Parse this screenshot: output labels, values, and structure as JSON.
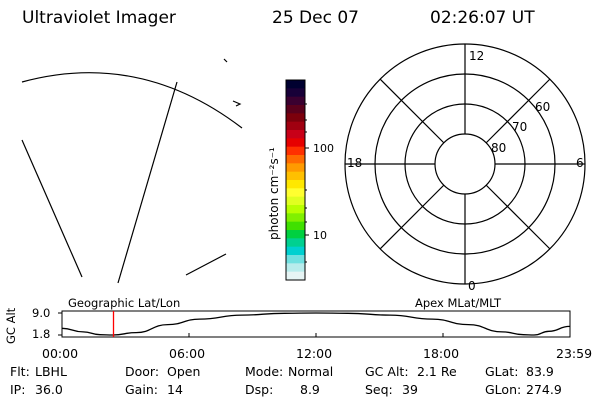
{
  "header": {
    "instrument": "Ultraviolet Imager",
    "date": "25 Dec 07",
    "time": "02:26:07 UT"
  },
  "colorbar": {
    "units": "photon cm⁻²s⁻¹",
    "ticks": [
      "100",
      "10"
    ],
    "colors": [
      "#000030",
      "#180038",
      "#3a0030",
      "#5a001c",
      "#7c000c",
      "#a00010",
      "#c80018",
      "#e60000",
      "#ff3000",
      "#ff6a00",
      "#ff9a00",
      "#ffc000",
      "#ffe800",
      "#ffff30",
      "#e0ff20",
      "#b8ff00",
      "#80f000",
      "#40e000",
      "#00d040",
      "#00d090",
      "#00d0d0",
      "#70e0e0",
      "#b8ecec",
      "#e6f4f4"
    ]
  },
  "polar": {
    "mlt_labels": {
      "top": "12",
      "bottom": "0",
      "left": "18",
      "right": "6"
    },
    "lat_labels": [
      "60",
      "70",
      "80"
    ],
    "lat_values": [
      60,
      70,
      80
    ]
  },
  "timeline": {
    "left_label": "Geographic Lat/Lon",
    "right_label": "Apex MLat/MLT",
    "axis_name": "GC Alt",
    "ymax_label": "9.0",
    "ymin_label": "1.8",
    "ylim": [
      1.8,
      9.0
    ],
    "x_ticks": [
      "00:00",
      "06:00",
      "12:00",
      "18:00",
      "23:59"
    ],
    "current_time_hours": 2.435,
    "marker_color": "#ff0000",
    "curve": [
      {
        "t": 0,
        "alt": 4.0
      },
      {
        "t": 1.0,
        "alt": 2.8
      },
      {
        "t": 1.8,
        "alt": 1.9
      },
      {
        "t": 2.4,
        "alt": 1.8
      },
      {
        "t": 3.5,
        "alt": 2.6
      },
      {
        "t": 5.0,
        "alt": 5.2
      },
      {
        "t": 6.5,
        "alt": 7.0
      },
      {
        "t": 8.5,
        "alt": 8.3
      },
      {
        "t": 10.5,
        "alt": 8.9
      },
      {
        "t": 12.0,
        "alt": 9.0
      },
      {
        "t": 13.5,
        "alt": 8.9
      },
      {
        "t": 15.5,
        "alt": 8.3
      },
      {
        "t": 17.5,
        "alt": 7.0
      },
      {
        "t": 19.2,
        "alt": 5.2
      },
      {
        "t": 20.8,
        "alt": 2.8
      },
      {
        "t": 21.8,
        "alt": 1.9
      },
      {
        "t": 22.3,
        "alt": 1.8
      },
      {
        "t": 23.0,
        "alt": 3.0
      },
      {
        "t": 23.98,
        "alt": 4.6
      }
    ]
  },
  "status": {
    "flt_label": "Flt:",
    "flt_value": "LBHL",
    "door_label": "Door:",
    "door_value": "Open",
    "mode_label": "Mode:",
    "mode_value": "Normal",
    "gcalt_label": "GC Alt:",
    "gcalt_value": "2.1 Re",
    "glat_label": "GLat:",
    "glat_value": "83.9",
    "ip_label": "IP:",
    "ip_value": "36.0",
    "gain_label": "Gain:",
    "gain_value": "14",
    "dsp_label": "Dsp:",
    "dsp_value": "8.9",
    "seq_label": "Seq:",
    "seq_value": "39",
    "glon_label": "GLon:",
    "glon_value": "274.9"
  }
}
